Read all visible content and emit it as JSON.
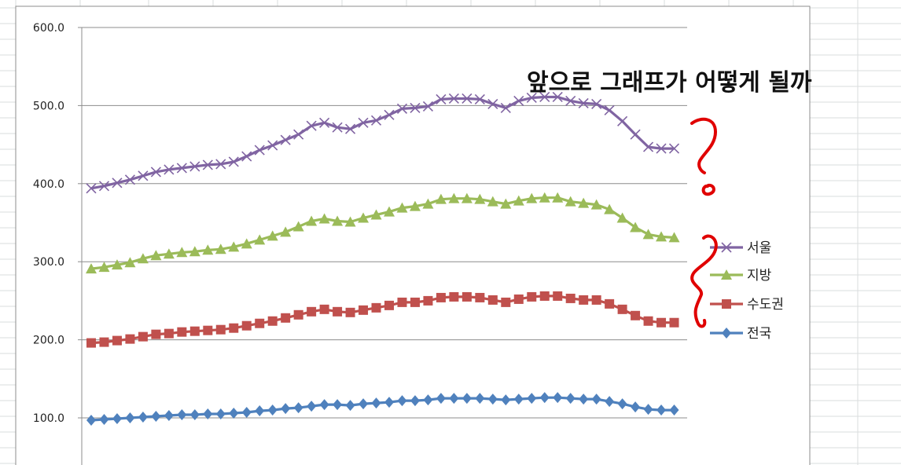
{
  "chart_data": {
    "type": "line",
    "title": "",
    "xlabel": "",
    "ylabel": "",
    "ylim": [
      100,
      600
    ],
    "yticks": [
      "100.0",
      "200.0",
      "300.0",
      "400.0",
      "500.0",
      "600.0"
    ],
    "grid": true,
    "legend_position": "right",
    "annotation": "앞으로 그래프가 어떻게 될까",
    "series": [
      {
        "name": "서울",
        "color": "#8064A2",
        "marker": "x",
        "values": [
          394,
          397,
          401,
          405,
          410,
          415,
          418,
          420,
          422,
          424,
          425,
          428,
          435,
          443,
          449,
          456,
          463,
          474,
          478,
          472,
          470,
          478,
          481,
          488,
          496,
          497,
          499,
          508,
          509,
          509,
          508,
          502,
          497,
          506,
          510,
          511,
          511,
          506,
          503,
          502,
          494,
          480,
          463,
          447,
          445,
          445
        ]
      },
      {
        "name": "지방",
        "color": "#9BBB59",
        "marker": "triangle",
        "values": [
          291,
          293,
          296,
          299,
          304,
          308,
          310,
          312,
          313,
          315,
          316,
          319,
          323,
          328,
          333,
          338,
          345,
          352,
          355,
          352,
          351,
          356,
          360,
          364,
          369,
          371,
          374,
          380,
          381,
          381,
          380,
          377,
          374,
          378,
          381,
          382,
          382,
          377,
          375,
          373,
          367,
          356,
          344,
          335,
          332,
          331
        ]
      },
      {
        "name": "수도권",
        "color": "#C0504D",
        "marker": "square",
        "values": [
          196,
          197,
          199,
          201,
          204,
          207,
          208,
          210,
          211,
          212,
          213,
          215,
          218,
          221,
          224,
          228,
          232,
          236,
          239,
          236,
          235,
          238,
          241,
          244,
          248,
          248,
          250,
          254,
          255,
          255,
          254,
          251,
          248,
          252,
          255,
          256,
          256,
          253,
          251,
          251,
          246,
          239,
          231,
          224,
          222,
          222
        ]
      },
      {
        "name": "전국",
        "color": "#4F81BD",
        "marker": "diamond",
        "values": [
          97,
          98,
          99,
          100,
          101,
          102,
          103,
          104,
          104,
          105,
          105,
          106,
          107,
          109,
          110,
          112,
          113,
          115,
          117,
          117,
          116,
          118,
          119,
          120,
          122,
          122,
          123,
          125,
          125,
          125,
          125,
          124,
          123,
          124,
          125,
          126,
          126,
          125,
          124,
          124,
          121,
          118,
          114,
          111,
          110,
          110
        ]
      }
    ]
  }
}
